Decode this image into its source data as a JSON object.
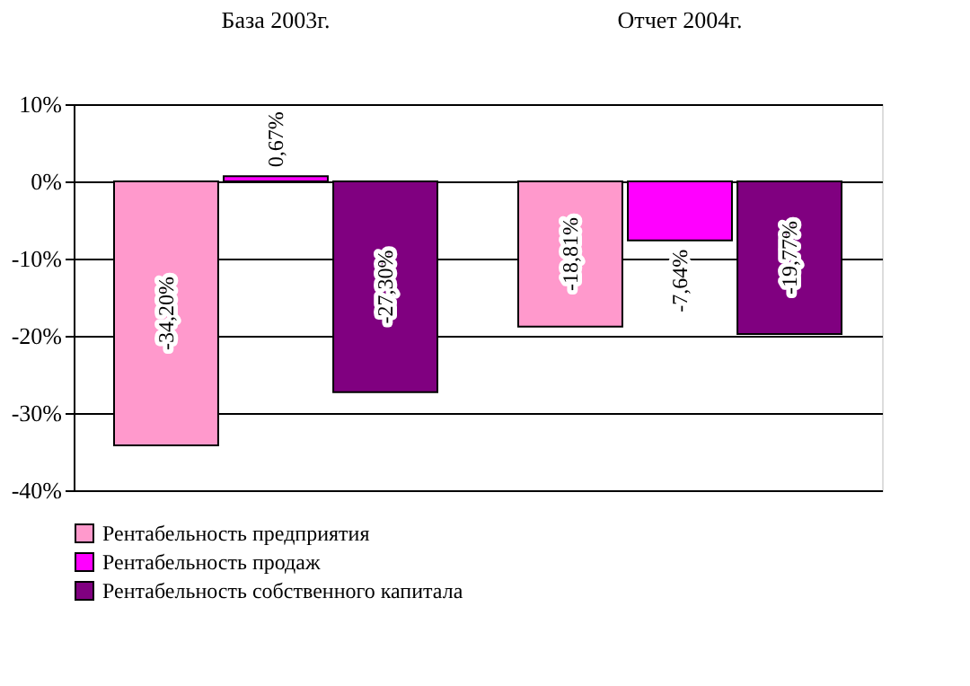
{
  "chart_data": {
    "type": "bar",
    "categories": [
      "База 2003г.",
      "Отчет 2004г."
    ],
    "series": [
      {
        "name": "Рентабельность предприятия",
        "color": "#ff99cc",
        "values": [
          -34.2,
          -18.81
        ],
        "value_labels": [
          "-34,20%",
          "-18,81%"
        ]
      },
      {
        "name": "Рентабельность продаж",
        "color": "#ff00ff",
        "values": [
          0.67,
          -7.64
        ],
        "value_labels": [
          "0,67%",
          "-7,64%"
        ]
      },
      {
        "name": "Рентабельность собственного капитала",
        "color": "#800080",
        "values": [
          -27.3,
          -19.77
        ],
        "value_labels": [
          "-27,30%",
          "-19,77%"
        ]
      }
    ],
    "ylim": [
      -40,
      10
    ],
    "yticks": [
      {
        "value": -40,
        "label": "-40%"
      },
      {
        "value": -30,
        "label": "-30%"
      },
      {
        "value": -20,
        "label": "-20%"
      },
      {
        "value": -10,
        "label": "-10%"
      },
      {
        "value": 0,
        "label": "0%"
      },
      {
        "value": 10,
        "label": "10%"
      }
    ],
    "grid": "y",
    "legend": "bottom"
  }
}
